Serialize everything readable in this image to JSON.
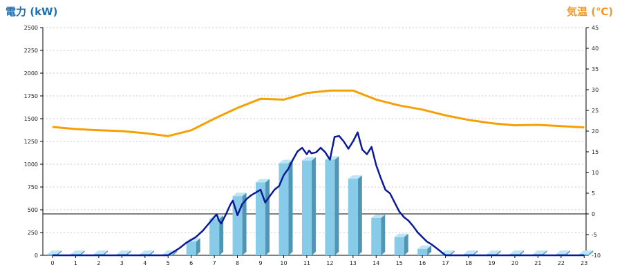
{
  "chart_data": {
    "type": "bar",
    "left_axis_title": "電力 (kW)",
    "right_axis_title": "気温 (℃)",
    "colors": {
      "left_title": "#1a6fb5",
      "right_title": "#f5961e",
      "bar_front": "#87cbe8",
      "bar_side": "#4f95b4",
      "bar_top": "#bfe5f5",
      "power_line": "#0a1a96",
      "temp_line": "#f5a000",
      "grid": "#c8c8c8"
    },
    "x_ticks": [
      "0",
      "1",
      "2",
      "3",
      "4",
      "5",
      "6",
      "7",
      "8",
      "9",
      "10",
      "11",
      "12",
      "13",
      "14",
      "15",
      "16",
      "17",
      "18",
      "19",
      "20",
      "21",
      "22",
      "23"
    ],
    "ylim_left": [
      0,
      2500
    ],
    "yticks_left": [
      "0",
      "250",
      "500",
      "750",
      "1000",
      "1250",
      "1500",
      "1750",
      "2000",
      "2250",
      "2500"
    ],
    "ylim_right": [
      -10,
      45
    ],
    "yticks_right": [
      "-10",
      "-5",
      "0",
      "5",
      "10",
      "15",
      "20",
      "25",
      "30",
      "35",
      "40",
      "45"
    ],
    "grid": true,
    "series": [
      {
        "kind": "bar",
        "values": [
          15,
          15,
          15,
          15,
          15,
          15,
          150,
          400,
          650,
          800,
          1010,
          1040,
          1050,
          840,
          410,
          200,
          70,
          15,
          15,
          15,
          15,
          15,
          15,
          15
        ]
      },
      {
        "kind": "line",
        "axis": "left",
        "x": [
          0,
          1,
          2,
          3,
          4,
          5,
          5.5,
          5.8,
          6.0,
          6.2,
          6.5,
          6.8,
          7.0,
          7.1,
          7.2,
          7.3,
          7.5,
          7.7,
          7.8,
          8.0,
          8.2,
          8.4,
          8.6,
          8.8,
          9.0,
          9.2,
          9.4,
          9.6,
          9.8,
          10.0,
          10.2,
          10.4,
          10.6,
          10.8,
          11.0,
          11.1,
          11.2,
          11.4,
          11.6,
          11.8,
          12.0,
          12.2,
          12.4,
          12.6,
          12.8,
          13.0,
          13.2,
          13.4,
          13.6,
          13.8,
          14.0,
          14.2,
          14.4,
          14.6,
          14.8,
          15.0,
          15.2,
          15.4,
          15.6,
          15.8,
          16.0,
          16.2,
          16.4,
          16.6,
          17,
          18,
          19,
          20,
          21,
          22,
          23
        ],
        "values": [
          0,
          0,
          0,
          0,
          0,
          0,
          80,
          140,
          170,
          200,
          270,
          360,
          420,
          450,
          380,
          350,
          450,
          560,
          600,
          440,
          560,
          620,
          660,
          690,
          720,
          580,
          650,
          720,
          760,
          880,
          950,
          1050,
          1140,
          1180,
          1110,
          1150,
          1120,
          1130,
          1180,
          1130,
          1050,
          1300,
          1310,
          1250,
          1170,
          1250,
          1350,
          1160,
          1110,
          1190,
          990,
          850,
          720,
          680,
          580,
          480,
          420,
          380,
          320,
          250,
          200,
          150,
          120,
          80,
          0,
          0,
          0,
          0,
          0,
          0,
          0
        ]
      },
      {
        "kind": "line",
        "axis": "right",
        "x": [
          0,
          1,
          2,
          3,
          4,
          5,
          6,
          7,
          8,
          9,
          10,
          11,
          12,
          13,
          14,
          15,
          16,
          17,
          18,
          19,
          20,
          21,
          22,
          23
        ],
        "values": [
          21,
          20.5,
          20.2,
          20,
          19.5,
          18.8,
          20.2,
          23,
          25.6,
          27.8,
          27.6,
          29.2,
          29.8,
          29.8,
          27.6,
          26.2,
          25.2,
          23.8,
          22.7,
          21.9,
          21.4,
          21.5,
          21.2,
          20.9
        ]
      }
    ]
  }
}
